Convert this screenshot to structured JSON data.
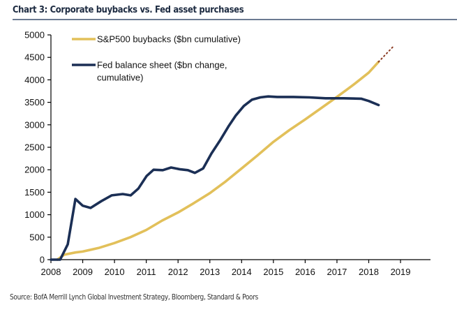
{
  "title": "Chart 3: Corporate buybacks vs. Fed asset purchases",
  "source": "Source: BofA Merrill Lynch Global Investment Strategy, Bloomberg, Standard & Poors",
  "colors": {
    "sp500": "#e2c05a",
    "fed": "#1b2f55",
    "projection": "#8a3a22",
    "axis": "#000000"
  },
  "chart_data": {
    "type": "line",
    "title": "Chart 3: Corporate buybacks vs. Fed asset purchases",
    "xlabel": "",
    "ylabel": "",
    "xlim": [
      2008,
      2019.95
    ],
    "ylim": [
      0,
      5000
    ],
    "grid": false,
    "legend_position": "top-left",
    "x_ticks": [
      2008,
      2009,
      2010,
      2011,
      2012,
      2013,
      2014,
      2015,
      2016,
      2017,
      2018,
      2019
    ],
    "y_ticks": [
      0,
      500,
      1000,
      1500,
      2000,
      2500,
      3000,
      3500,
      4000,
      4500,
      5000
    ],
    "series": [
      {
        "name": "S&P500 buybacks ($bn cumulative)",
        "legend": [
          "S&P500 buybacks ($bn cumulative)"
        ],
        "style": "solid",
        "x": [
          2008.2,
          2008.42,
          2008.77,
          2009.0,
          2009.5,
          2010.0,
          2010.5,
          2011.0,
          2011.5,
          2012.0,
          2012.5,
          2013.0,
          2013.5,
          2014.0,
          2014.5,
          2015.0,
          2015.5,
          2016.0,
          2016.5,
          2017.0,
          2017.5,
          2018.0,
          2018.31
        ],
        "y": [
          0,
          110,
          160,
          180,
          260,
          370,
          500,
          660,
          870,
          1050,
          1260,
          1480,
          1740,
          2030,
          2320,
          2620,
          2880,
          3120,
          3370,
          3620,
          3880,
          4160,
          4400
        ]
      },
      {
        "name": "S&P500 buybacks projection",
        "legend": [],
        "style": "dotted",
        "x": [
          2018.31,
          2018.81
        ],
        "y": [
          4400,
          4770
        ]
      },
      {
        "name": "Fed balance sheet ($bn change, cumulative)",
        "legend": [
          "Fed balance sheet ($bn change,",
          "cumulative)"
        ],
        "style": "solid",
        "x": [
          2008.0,
          2008.29,
          2008.53,
          2008.77,
          2009.0,
          2009.25,
          2009.58,
          2009.91,
          2010.26,
          2010.51,
          2010.75,
          2011.01,
          2011.23,
          2011.52,
          2011.78,
          2012.07,
          2012.31,
          2012.53,
          2012.79,
          2013.05,
          2013.32,
          2013.6,
          2013.82,
          2014.07,
          2014.33,
          2014.59,
          2014.84,
          2015.12,
          2015.63,
          2016.13,
          2016.64,
          2017.21,
          2017.76,
          2018.0,
          2018.31
        ],
        "y": [
          0,
          0,
          340,
          1350,
          1200,
          1150,
          1300,
          1430,
          1460,
          1430,
          1580,
          1860,
          2000,
          1990,
          2050,
          2010,
          1990,
          1930,
          2030,
          2360,
          2650,
          2980,
          3210,
          3420,
          3560,
          3610,
          3630,
          3620,
          3620,
          3610,
          3590,
          3590,
          3580,
          3530,
          3440
        ]
      }
    ]
  }
}
